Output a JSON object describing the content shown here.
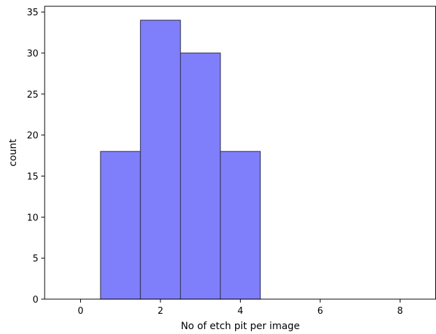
{
  "chart_data": {
    "type": "bar",
    "title": "",
    "xlabel": "No of etch pit per image",
    "ylabel": "count",
    "bins": [
      {
        "x_start": 0.5,
        "x_end": 1.5,
        "value": 18
      },
      {
        "x_start": 1.5,
        "x_end": 2.5,
        "value": 34
      },
      {
        "x_start": 2.5,
        "x_end": 3.5,
        "value": 30
      },
      {
        "x_start": 3.5,
        "x_end": 4.5,
        "value": 18
      }
    ],
    "xlim": [
      -0.9,
      8.9
    ],
    "ylim": [
      0,
      35.7
    ],
    "x_ticks": [
      0,
      2,
      4,
      6,
      8
    ],
    "y_ticks": [
      0,
      5,
      10,
      15,
      20,
      25,
      30,
      35
    ],
    "grid": false,
    "bar_color": "#7f7ffb",
    "bar_edge_color": "#3a3a66"
  }
}
